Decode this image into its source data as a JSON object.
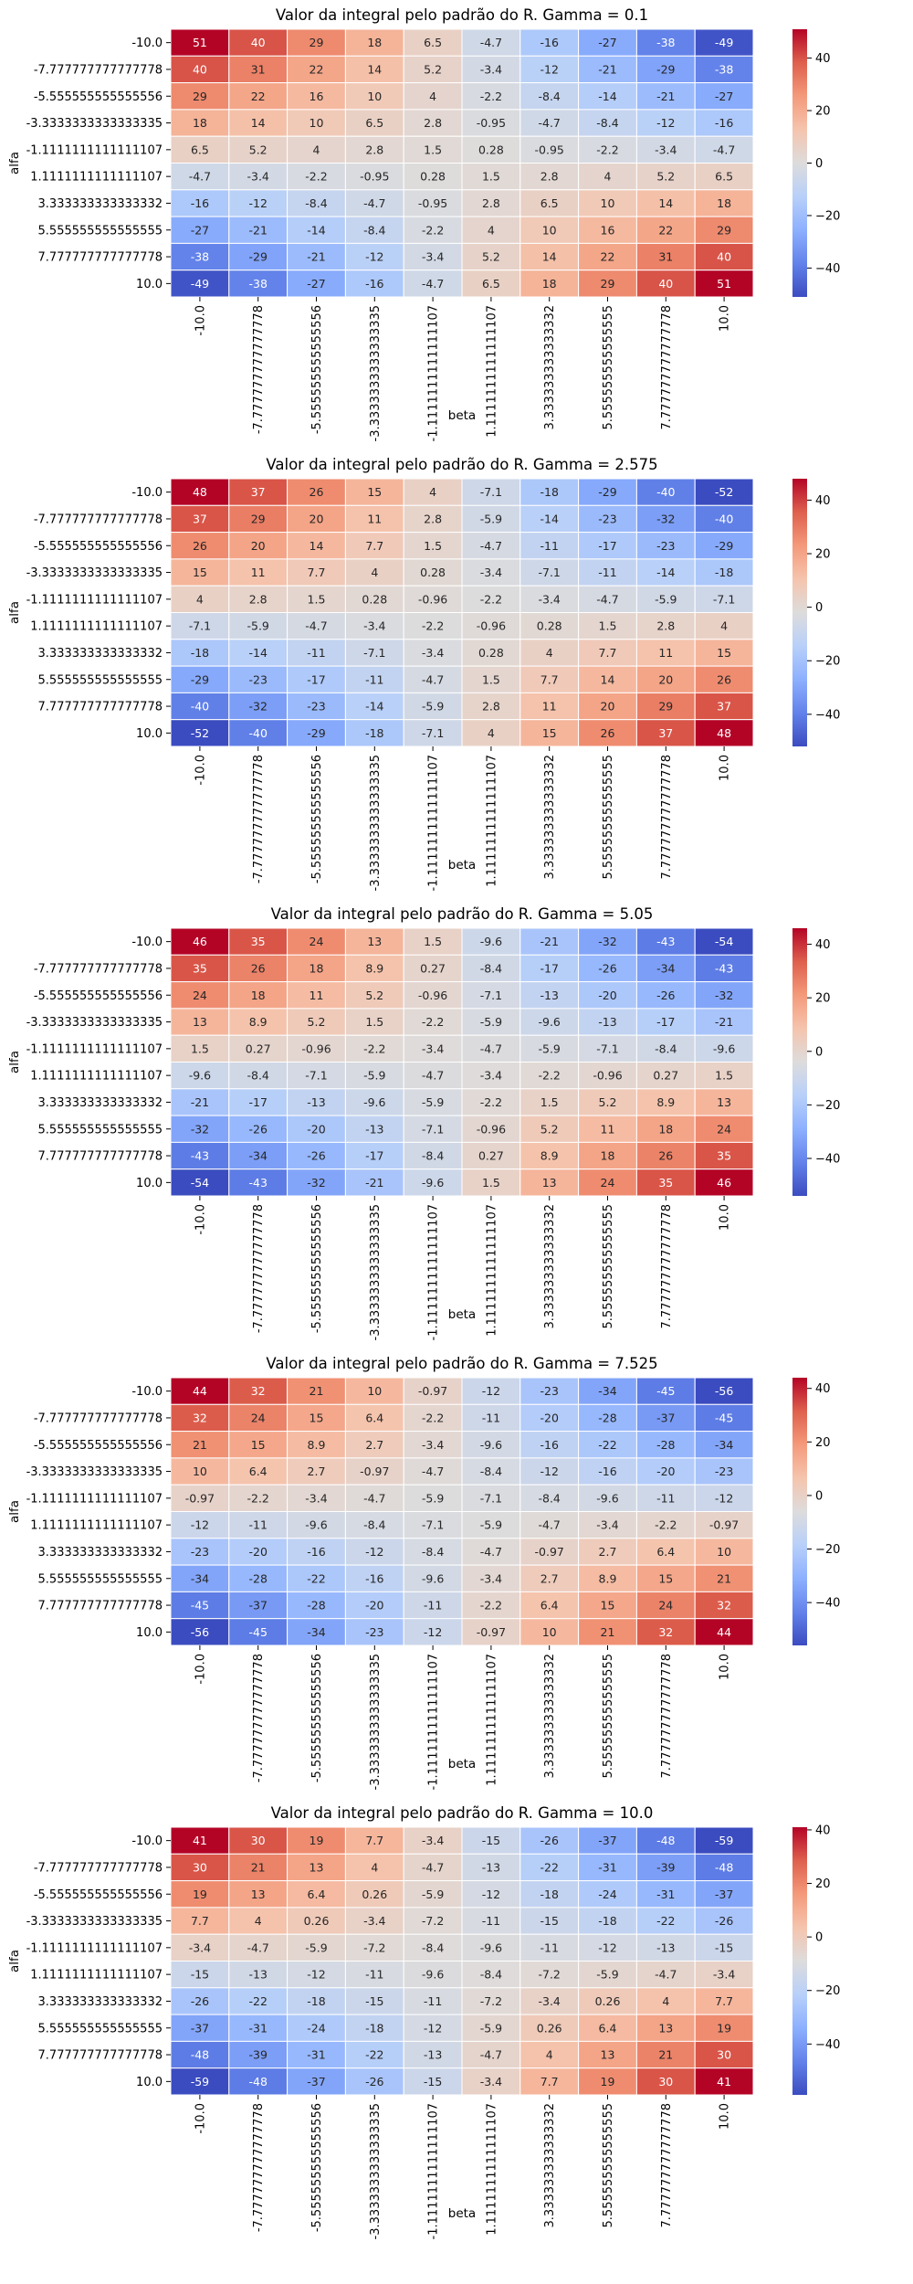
{
  "chart_data": [
    {
      "type": "heatmap",
      "title": "Valor da integral pelo padrão do R. Gamma = 0.1",
      "xlabel": "beta",
      "ylabel": "alfa",
      "x_tick_labels": [
        "-10.0",
        "-7.777777777777778",
        "-5.555555555555556",
        "-3.3333333333333335",
        "-1.1111111111111107",
        "1.1111111111111107",
        "3.333333333333332",
        "5.555555555555555",
        "7.777777777777778",
        "10.0"
      ],
      "y_tick_labels": [
        "-10.0",
        "-7.777777777777778",
        "-5.555555555555556",
        "-3.3333333333333335",
        "-1.1111111111111107",
        "1.1111111111111107",
        "3.333333333333332",
        "5.555555555555555",
        "7.777777777777778",
        "10.0"
      ],
      "values": [
        [
          "51",
          "40",
          "29",
          "18",
          "6.5",
          "-4.7",
          "-16",
          "-27",
          "-38",
          "-49"
        ],
        [
          "40",
          "31",
          "22",
          "14",
          "5.2",
          "-3.4",
          "-12",
          "-21",
          "-29",
          "-38"
        ],
        [
          "29",
          "22",
          "16",
          "10",
          "4",
          "-2.2",
          "-8.4",
          "-14",
          "-21",
          "-27"
        ],
        [
          "18",
          "14",
          "10",
          "6.5",
          "2.8",
          "-0.95",
          "-4.7",
          "-8.4",
          "-12",
          "-16"
        ],
        [
          "6.5",
          "5.2",
          "4",
          "2.8",
          "1.5",
          "0.28",
          "-0.95",
          "-2.2",
          "-3.4",
          "-4.7"
        ],
        [
          "-4.7",
          "-3.4",
          "-2.2",
          "-0.95",
          "0.28",
          "1.5",
          "2.8",
          "4",
          "5.2",
          "6.5"
        ],
        [
          "-16",
          "-12",
          "-8.4",
          "-4.7",
          "-0.95",
          "2.8",
          "6.5",
          "10",
          "14",
          "18"
        ],
        [
          "-27",
          "-21",
          "-14",
          "-8.4",
          "-2.2",
          "4",
          "10",
          "16",
          "22",
          "29"
        ],
        [
          "-38",
          "-29",
          "-21",
          "-12",
          "-3.4",
          "5.2",
          "14",
          "22",
          "31",
          "40"
        ],
        [
          "-49",
          "-38",
          "-27",
          "-16",
          "-4.7",
          "6.5",
          "18",
          "29",
          "40",
          "51"
        ]
      ],
      "vmin": -51,
      "vmax": 51,
      "colorbar_ticks": [
        40,
        20,
        0,
        -20,
        -40
      ],
      "colorbar_tick_labels": [
        "40",
        "20",
        "0",
        "−20",
        "−40"
      ],
      "colormap": "coolwarm"
    },
    {
      "type": "heatmap",
      "title": "Valor da integral pelo padrão do R. Gamma = 2.575",
      "xlabel": "beta",
      "ylabel": "alfa",
      "x_tick_labels": [
        "-10.0",
        "-7.777777777777778",
        "-5.555555555555556",
        "-3.3333333333333335",
        "-1.1111111111111107",
        "1.1111111111111107",
        "3.333333333333332",
        "5.555555555555555",
        "7.777777777777778",
        "10.0"
      ],
      "y_tick_labels": [
        "-10.0",
        "-7.777777777777778",
        "-5.555555555555556",
        "-3.3333333333333335",
        "-1.1111111111111107",
        "1.1111111111111107",
        "3.333333333333332",
        "5.555555555555555",
        "7.777777777777778",
        "10.0"
      ],
      "values": [
        [
          "48",
          "37",
          "26",
          "15",
          "4",
          "-7.1",
          "-18",
          "-29",
          "-40",
          "-52"
        ],
        [
          "37",
          "29",
          "20",
          "11",
          "2.8",
          "-5.9",
          "-14",
          "-23",
          "-32",
          "-40"
        ],
        [
          "26",
          "20",
          "14",
          "7.7",
          "1.5",
          "-4.7",
          "-11",
          "-17",
          "-23",
          "-29"
        ],
        [
          "15",
          "11",
          "7.7",
          "4",
          "0.28",
          "-3.4",
          "-7.1",
          "-11",
          "-14",
          "-18"
        ],
        [
          "4",
          "2.8",
          "1.5",
          "0.28",
          "-0.96",
          "-2.2",
          "-3.4",
          "-4.7",
          "-5.9",
          "-7.1"
        ],
        [
          "-7.1",
          "-5.9",
          "-4.7",
          "-3.4",
          "-2.2",
          "-0.96",
          "0.28",
          "1.5",
          "2.8",
          "4"
        ],
        [
          "-18",
          "-14",
          "-11",
          "-7.1",
          "-3.4",
          "0.28",
          "4",
          "7.7",
          "11",
          "15"
        ],
        [
          "-29",
          "-23",
          "-17",
          "-11",
          "-4.7",
          "1.5",
          "7.7",
          "14",
          "20",
          "26"
        ],
        [
          "-40",
          "-32",
          "-23",
          "-14",
          "-5.9",
          "2.8",
          "11",
          "20",
          "29",
          "37"
        ],
        [
          "-52",
          "-40",
          "-29",
          "-18",
          "-7.1",
          "4",
          "15",
          "26",
          "37",
          "48"
        ]
      ],
      "vmin": -52,
      "vmax": 48,
      "colorbar_ticks": [
        40,
        20,
        0,
        -20,
        -40
      ],
      "colorbar_tick_labels": [
        "40",
        "20",
        "0",
        "−20",
        "−40"
      ],
      "colormap": "coolwarm"
    },
    {
      "type": "heatmap",
      "title": "Valor da integral pelo padrão do R. Gamma = 5.05",
      "xlabel": "beta",
      "ylabel": "alfa",
      "x_tick_labels": [
        "-10.0",
        "-7.777777777777778",
        "-5.555555555555556",
        "-3.3333333333333335",
        "-1.1111111111111107",
        "1.1111111111111107",
        "3.333333333333332",
        "5.555555555555555",
        "7.777777777777778",
        "10.0"
      ],
      "y_tick_labels": [
        "-10.0",
        "-7.777777777777778",
        "-5.555555555555556",
        "-3.3333333333333335",
        "-1.1111111111111107",
        "1.1111111111111107",
        "3.333333333333332",
        "5.555555555555555",
        "7.777777777777778",
        "10.0"
      ],
      "values": [
        [
          "46",
          "35",
          "24",
          "13",
          "1.5",
          "-9.6",
          "-21",
          "-32",
          "-43",
          "-54"
        ],
        [
          "35",
          "26",
          "18",
          "8.9",
          "0.27",
          "-8.4",
          "-17",
          "-26",
          "-34",
          "-43"
        ],
        [
          "24",
          "18",
          "11",
          "5.2",
          "-0.96",
          "-7.1",
          "-13",
          "-20",
          "-26",
          "-32"
        ],
        [
          "13",
          "8.9",
          "5.2",
          "1.5",
          "-2.2",
          "-5.9",
          "-9.6",
          "-13",
          "-17",
          "-21"
        ],
        [
          "1.5",
          "0.27",
          "-0.96",
          "-2.2",
          "-3.4",
          "-4.7",
          "-5.9",
          "-7.1",
          "-8.4",
          "-9.6"
        ],
        [
          "-9.6",
          "-8.4",
          "-7.1",
          "-5.9",
          "-4.7",
          "-3.4",
          "-2.2",
          "-0.96",
          "0.27",
          "1.5"
        ],
        [
          "-21",
          "-17",
          "-13",
          "-9.6",
          "-5.9",
          "-2.2",
          "1.5",
          "5.2",
          "8.9",
          "13"
        ],
        [
          "-32",
          "-26",
          "-20",
          "-13",
          "-7.1",
          "-0.96",
          "5.2",
          "11",
          "18",
          "24"
        ],
        [
          "-43",
          "-34",
          "-26",
          "-17",
          "-8.4",
          "0.27",
          "8.9",
          "18",
          "26",
          "35"
        ],
        [
          "-54",
          "-43",
          "-32",
          "-21",
          "-9.6",
          "1.5",
          "13",
          "24",
          "35",
          "46"
        ]
      ],
      "vmin": -54,
      "vmax": 46,
      "colorbar_ticks": [
        40,
        20,
        0,
        -20,
        -40
      ],
      "colorbar_tick_labels": [
        "40",
        "20",
        "0",
        "−20",
        "−40"
      ],
      "colormap": "coolwarm"
    },
    {
      "type": "heatmap",
      "title": "Valor da integral pelo padrão do R. Gamma = 7.525",
      "xlabel": "beta",
      "ylabel": "alfa",
      "x_tick_labels": [
        "-10.0",
        "-7.777777777777778",
        "-5.555555555555556",
        "-3.3333333333333335",
        "-1.1111111111111107",
        "1.1111111111111107",
        "3.333333333333332",
        "5.555555555555555",
        "7.777777777777778",
        "10.0"
      ],
      "y_tick_labels": [
        "-10.0",
        "-7.777777777777778",
        "-5.555555555555556",
        "-3.3333333333333335",
        "-1.1111111111111107",
        "1.1111111111111107",
        "3.333333333333332",
        "5.555555555555555",
        "7.777777777777778",
        "10.0"
      ],
      "values": [
        [
          "44",
          "32",
          "21",
          "10",
          "-0.97",
          "-12",
          "-23",
          "-34",
          "-45",
          "-56"
        ],
        [
          "32",
          "24",
          "15",
          "6.4",
          "-2.2",
          "-11",
          "-20",
          "-28",
          "-37",
          "-45"
        ],
        [
          "21",
          "15",
          "8.9",
          "2.7",
          "-3.4",
          "-9.6",
          "-16",
          "-22",
          "-28",
          "-34"
        ],
        [
          "10",
          "6.4",
          "2.7",
          "-0.97",
          "-4.7",
          "-8.4",
          "-12",
          "-16",
          "-20",
          "-23"
        ],
        [
          "-0.97",
          "-2.2",
          "-3.4",
          "-4.7",
          "-5.9",
          "-7.1",
          "-8.4",
          "-9.6",
          "-11",
          "-12"
        ],
        [
          "-12",
          "-11",
          "-9.6",
          "-8.4",
          "-7.1",
          "-5.9",
          "-4.7",
          "-3.4",
          "-2.2",
          "-0.97"
        ],
        [
          "-23",
          "-20",
          "-16",
          "-12",
          "-8.4",
          "-4.7",
          "-0.97",
          "2.7",
          "6.4",
          "10"
        ],
        [
          "-34",
          "-28",
          "-22",
          "-16",
          "-9.6",
          "-3.4",
          "2.7",
          "8.9",
          "15",
          "21"
        ],
        [
          "-45",
          "-37",
          "-28",
          "-20",
          "-11",
          "-2.2",
          "6.4",
          "15",
          "24",
          "32"
        ],
        [
          "-56",
          "-45",
          "-34",
          "-23",
          "-12",
          "-0.97",
          "10",
          "21",
          "32",
          "44"
        ]
      ],
      "vmin": -56,
      "vmax": 44,
      "colorbar_ticks": [
        40,
        20,
        0,
        -20,
        -40
      ],
      "colorbar_tick_labels": [
        "40",
        "20",
        "0",
        "−20",
        "−40"
      ],
      "colormap": "coolwarm"
    },
    {
      "type": "heatmap",
      "title": "Valor da integral pelo padrão do R. Gamma = 10.0",
      "xlabel": "beta",
      "ylabel": "alfa",
      "x_tick_labels": [
        "-10.0",
        "-7.777777777777778",
        "-5.555555555555556",
        "-3.3333333333333335",
        "-1.1111111111111107",
        "1.1111111111111107",
        "3.333333333333332",
        "5.555555555555555",
        "7.777777777777778",
        "10.0"
      ],
      "y_tick_labels": [
        "-10.0",
        "-7.777777777777778",
        "-5.555555555555556",
        "-3.3333333333333335",
        "-1.1111111111111107",
        "1.1111111111111107",
        "3.333333333333332",
        "5.555555555555555",
        "7.777777777777778",
        "10.0"
      ],
      "values": [
        [
          "41",
          "30",
          "19",
          "7.7",
          "-3.4",
          "-15",
          "-26",
          "-37",
          "-48",
          "-59"
        ],
        [
          "30",
          "21",
          "13",
          "4",
          "-4.7",
          "-13",
          "-22",
          "-31",
          "-39",
          "-48"
        ],
        [
          "19",
          "13",
          "6.4",
          "0.26",
          "-5.9",
          "-12",
          "-18",
          "-24",
          "-31",
          "-37"
        ],
        [
          "7.7",
          "4",
          "0.26",
          "-3.4",
          "-7.2",
          "-11",
          "-15",
          "-18",
          "-22",
          "-26"
        ],
        [
          "-3.4",
          "-4.7",
          "-5.9",
          "-7.2",
          "-8.4",
          "-9.6",
          "-11",
          "-12",
          "-13",
          "-15"
        ],
        [
          "-15",
          "-13",
          "-12",
          "-11",
          "-9.6",
          "-8.4",
          "-7.2",
          "-5.9",
          "-4.7",
          "-3.4"
        ],
        [
          "-26",
          "-22",
          "-18",
          "-15",
          "-11",
          "-7.2",
          "-3.4",
          "0.26",
          "4",
          "7.7"
        ],
        [
          "-37",
          "-31",
          "-24",
          "-18",
          "-12",
          "-5.9",
          "0.26",
          "6.4",
          "13",
          "19"
        ],
        [
          "-48",
          "-39",
          "-31",
          "-22",
          "-13",
          "-4.7",
          "4",
          "13",
          "21",
          "30"
        ],
        [
          "-59",
          "-48",
          "-37",
          "-26",
          "-15",
          "-3.4",
          "7.7",
          "19",
          "30",
          "41"
        ]
      ],
      "vmin": -59,
      "vmax": 41,
      "colorbar_ticks": [
        40,
        20,
        0,
        -20,
        -40
      ],
      "colorbar_tick_labels": [
        "40",
        "20",
        "0",
        "−20",
        "−40"
      ],
      "colormap": "coolwarm"
    }
  ]
}
